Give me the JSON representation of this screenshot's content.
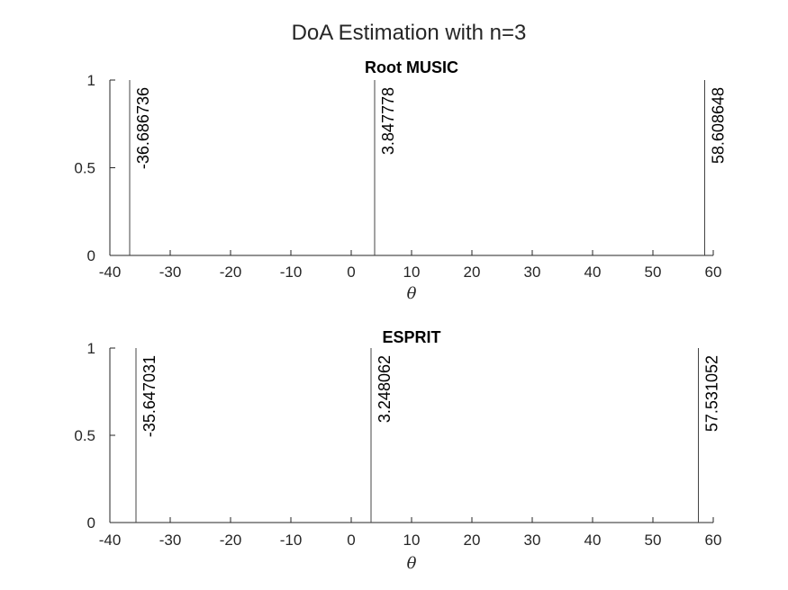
{
  "figure_title": "DoA Estimation with n=3",
  "chart_data": [
    {
      "type": "stem",
      "title": "Root MUSIC",
      "xlabel": "θ",
      "ylabel": "",
      "xlim": [
        -40,
        60
      ],
      "ylim": [
        0,
        1
      ],
      "xticks": [
        "-40",
        "-30",
        "-20",
        "-10",
        "0",
        "10",
        "20",
        "30",
        "40",
        "50",
        "60"
      ],
      "yticks": [
        "0",
        "0.5",
        "1"
      ],
      "grid": false,
      "points": [
        {
          "x": -36.686736,
          "y": 1,
          "label": "-36.686736"
        },
        {
          "x": 3.847778,
          "y": 1,
          "label": "3.847778"
        },
        {
          "x": 58.608648,
          "y": 1,
          "label": "58.608648"
        }
      ]
    },
    {
      "type": "stem",
      "title": "ESPRIT",
      "xlabel": "θ",
      "ylabel": "",
      "xlim": [
        -40,
        60
      ],
      "ylim": [
        0,
        1
      ],
      "xticks": [
        "-40",
        "-30",
        "-20",
        "-10",
        "0",
        "10",
        "20",
        "30",
        "40",
        "50",
        "60"
      ],
      "yticks": [
        "0",
        "0.5",
        "1"
      ],
      "grid": false,
      "points": [
        {
          "x": -35.647031,
          "y": 1,
          "label": "-35.647031"
        },
        {
          "x": 3.248062,
          "y": 1,
          "label": "3.248062"
        },
        {
          "x": 57.531052,
          "y": 1,
          "label": "57.531052"
        }
      ]
    }
  ]
}
